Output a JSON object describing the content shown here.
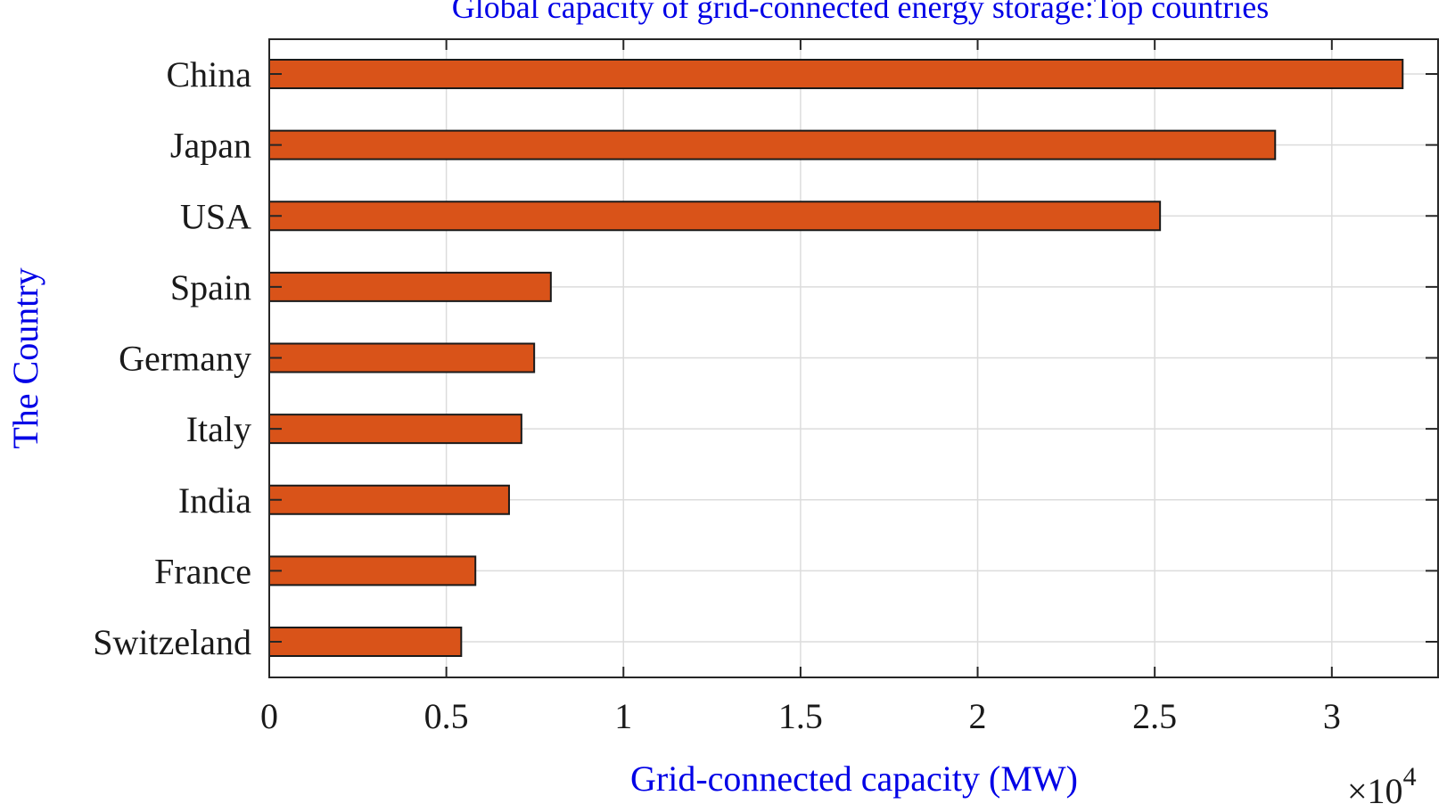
{
  "chart_data": {
    "type": "bar",
    "orientation": "horizontal",
    "title": "Global capacity of grid-connected energy storage:Top countries",
    "xlabel": "Grid-connected capacity (MW)",
    "ylabel": "The Country",
    "x_exponent_label": "×10",
    "x_exponent_power": "4",
    "categories": [
      "China",
      "Japan",
      "USA",
      "Spain",
      "Germany",
      "Italy",
      "India",
      "France",
      "Switzeland"
    ],
    "values": [
      32000,
      28400,
      25150,
      7950,
      7480,
      7120,
      6770,
      5820,
      5420
    ],
    "xlim": [
      0,
      33000
    ],
    "x_ticks": [
      0,
      5000,
      10000,
      15000,
      20000,
      25000,
      30000
    ],
    "x_tick_labels": [
      "0",
      "0.5",
      "1",
      "1.5",
      "2",
      "2.5",
      "3"
    ],
    "grid": true,
    "colors": {
      "bar": "#d95319",
      "bar_edge": "#1a1a1a",
      "label": "#0000e6",
      "grid": "#dcdcdc"
    }
  }
}
